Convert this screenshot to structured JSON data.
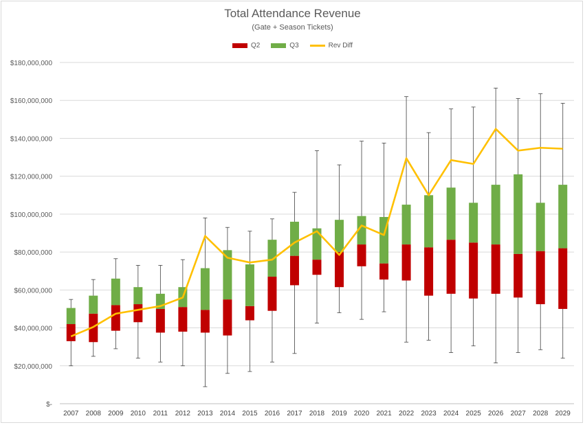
{
  "colors": {
    "q2": "#c00000",
    "q3": "#70ad47",
    "rev_diff": "#ffc000",
    "whisker": "#404040",
    "grid": "#d9d9d9",
    "text": "#595959"
  },
  "chart_data": {
    "type": "bar",
    "title": "Total Attendance Revenue",
    "subtitle": "(Gate + Season Tickets)",
    "legend_position": "top",
    "grid": true,
    "ylim": [
      0,
      180000000
    ],
    "yticks": [
      0,
      20000000,
      40000000,
      60000000,
      80000000,
      100000000,
      120000000,
      140000000,
      160000000,
      180000000
    ],
    "ytick_labels": [
      "$-",
      "$20,000,000",
      "$40,000,000",
      "$60,000,000",
      "$80,000,000",
      "$100,000,000",
      "$120,000,000",
      "$140,000,000",
      "$160,000,000",
      "$180,000,000"
    ],
    "categories": [
      "2007",
      "2008",
      "2009",
      "2010",
      "2011",
      "2012",
      "2013",
      "2014",
      "2015",
      "2016",
      "2017",
      "2018",
      "2019",
      "2020",
      "2021",
      "2022",
      "2023",
      "2024",
      "2025",
      "2026",
      "2027",
      "2028",
      "2029"
    ],
    "legend": [
      "Q2",
      "Q3",
      "Rev Diff"
    ],
    "series": [
      {
        "name": "Q2",
        "kind": "stacked-bar",
        "bottom": [
          33000000,
          32500000,
          38500000,
          43000000,
          37500000,
          38000000,
          37500000,
          36000000,
          44000000,
          49000000,
          62500000,
          68000000,
          61500000,
          72500000,
          65500000,
          65000000,
          57000000,
          58000000,
          55500000,
          58000000,
          56000000,
          52500000,
          50000000
        ],
        "top": [
          42000000,
          47500000,
          52000000,
          52500000,
          50000000,
          51000000,
          49500000,
          55000000,
          51500000,
          67000000,
          78000000,
          76000000,
          80000000,
          84000000,
          74000000,
          84000000,
          82500000,
          86500000,
          85000000,
          84000000,
          79000000,
          80500000,
          82000000
        ]
      },
      {
        "name": "Q3",
        "kind": "stacked-bar",
        "top": [
          50500000,
          57000000,
          66000000,
          61500000,
          58000000,
          61500000,
          71500000,
          81000000,
          73500000,
          86500000,
          96000000,
          92500000,
          97000000,
          99000000,
          98500000,
          105000000,
          110000000,
          114000000,
          106000000,
          115500000,
          121000000,
          106000000,
          115500000
        ]
      },
      {
        "name": "whisker",
        "kind": "error-range",
        "low": [
          20000000,
          25000000,
          29000000,
          24000000,
          22000000,
          20000000,
          9000000,
          16000000,
          17000000,
          22000000,
          26500000,
          42500000,
          48000000,
          44500000,
          48500000,
          32500000,
          33500000,
          27000000,
          30500000,
          21500000,
          27000000,
          28500000,
          24000000
        ],
        "high": [
          55000000,
          65500000,
          76500000,
          73000000,
          73000000,
          76000000,
          98000000,
          93000000,
          91000000,
          97500000,
          111500000,
          133500000,
          126000000,
          138500000,
          137500000,
          162000000,
          143000000,
          155500000,
          156500000,
          166500000,
          161000000,
          163500000,
          158500000
        ]
      },
      {
        "name": "Rev Diff",
        "kind": "line",
        "values": [
          35500000,
          40500000,
          47500000,
          49500000,
          51500000,
          56000000,
          88500000,
          77000000,
          74500000,
          76000000,
          85000000,
          91000000,
          78500000,
          94000000,
          89000000,
          129500000,
          110000000,
          128500000,
          126500000,
          145000000,
          133500000,
          135000000,
          134500000
        ]
      }
    ]
  }
}
